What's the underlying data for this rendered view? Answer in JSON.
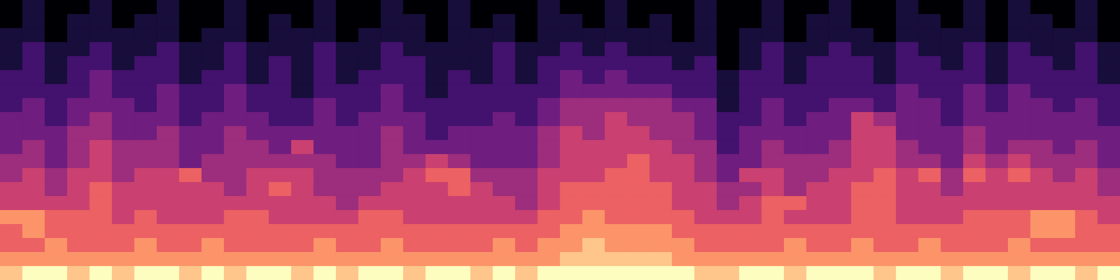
{
  "chart_data": {
    "type": "heatmap",
    "tick_labels": false,
    "grid": false,
    "zlim": [
      0,
      9
    ],
    "cells": [
      [
        0,
        1,
        0,
        0,
        1,
        0,
        0,
        1,
        0,
        0,
        1,
        0,
        0,
        0,
        1,
        0,
        0,
        1,
        0,
        0,
        1,
        0,
        0,
        0,
        1,
        0,
        0,
        1,
        0,
        0,
        0,
        1,
        0,
        0,
        1,
        0,
        0,
        1,
        0,
        0,
        1,
        0,
        0,
        1,
        0,
        1,
        0,
        0,
        1,
        0
      ],
      [
        0,
        1,
        0,
        1,
        1,
        0,
        1,
        1,
        0,
        0,
        1,
        0,
        1,
        0,
        1,
        0,
        0,
        1,
        1,
        0,
        1,
        0,
        1,
        0,
        1,
        1,
        0,
        1,
        0,
        1,
        0,
        1,
        0,
        0,
        1,
        0,
        1,
        1,
        0,
        0,
        1,
        1,
        0,
        1,
        0,
        1,
        1,
        0,
        1,
        0
      ],
      [
        1,
        1,
        0,
        1,
        1,
        1,
        1,
        1,
        0,
        1,
        1,
        0,
        1,
        1,
        1,
        0,
        1,
        1,
        1,
        0,
        1,
        1,
        1,
        0,
        1,
        1,
        1,
        1,
        1,
        1,
        0,
        1,
        0,
        1,
        1,
        0,
        1,
        1,
        1,
        0,
        1,
        1,
        1,
        1,
        0,
        1,
        1,
        1,
        1,
        0
      ],
      [
        1,
        2,
        1,
        1,
        2,
        1,
        1,
        2,
        1,
        1,
        2,
        1,
        1,
        1,
        2,
        1,
        1,
        2,
        1,
        1,
        1,
        1,
        2,
        1,
        1,
        2,
        1,
        2,
        1,
        1,
        1,
        1,
        0,
        1,
        2,
        1,
        1,
        2,
        1,
        1,
        2,
        1,
        1,
        2,
        1,
        2,
        1,
        1,
        2,
        1
      ],
      [
        1,
        2,
        1,
        2,
        2,
        1,
        2,
        2,
        1,
        1,
        2,
        1,
        2,
        1,
        2,
        1,
        1,
        2,
        2,
        1,
        1,
        1,
        2,
        1,
        2,
        2,
        2,
        2,
        2,
        2,
        1,
        2,
        0,
        1,
        2,
        1,
        2,
        2,
        2,
        1,
        2,
        2,
        1,
        2,
        1,
        2,
        2,
        1,
        2,
        1
      ],
      [
        2,
        2,
        1,
        2,
        3,
        2,
        2,
        2,
        1,
        2,
        2,
        1,
        2,
        1,
        2,
        1,
        2,
        2,
        2,
        1,
        2,
        1,
        2,
        1,
        2,
        3,
        2,
        3,
        2,
        2,
        2,
        2,
        1,
        2,
        2,
        1,
        2,
        2,
        2,
        1,
        2,
        2,
        2,
        2,
        1,
        2,
        2,
        2,
        2,
        1
      ],
      [
        2,
        2,
        2,
        2,
        3,
        2,
        2,
        3,
        2,
        2,
        3,
        2,
        2,
        1,
        2,
        2,
        2,
        3,
        2,
        1,
        2,
        2,
        2,
        2,
        2,
        3,
        3,
        3,
        3,
        3,
        2,
        2,
        1,
        2,
        2,
        2,
        2,
        2,
        2,
        2,
        3,
        2,
        2,
        3,
        2,
        3,
        2,
        2,
        2,
        2
      ],
      [
        2,
        3,
        2,
        3,
        3,
        3,
        2,
        3,
        2,
        2,
        3,
        2,
        2,
        2,
        3,
        2,
        2,
        3,
        2,
        2,
        2,
        2,
        2,
        2,
        3,
        4,
        4,
        4,
        4,
        4,
        3,
        3,
        1,
        2,
        3,
        2,
        2,
        3,
        3,
        2,
        3,
        3,
        2,
        3,
        2,
        3,
        3,
        2,
        3,
        2
      ],
      [
        3,
        3,
        2,
        3,
        4,
        3,
        3,
        3,
        2,
        3,
        3,
        3,
        2,
        2,
        3,
        2,
        3,
        3,
        3,
        2,
        2,
        2,
        3,
        2,
        3,
        4,
        4,
        5,
        4,
        4,
        4,
        3,
        2,
        2,
        3,
        2,
        3,
        3,
        5,
        4,
        3,
        3,
        2,
        3,
        3,
        3,
        3,
        3,
        3,
        2
      ],
      [
        3,
        3,
        3,
        4,
        4,
        3,
        3,
        4,
        3,
        3,
        4,
        3,
        3,
        3,
        3,
        3,
        3,
        4,
        3,
        2,
        3,
        3,
        3,
        3,
        4,
        5,
        4,
        5,
        5,
        4,
        4,
        3,
        2,
        3,
        3,
        3,
        3,
        3,
        5,
        5,
        3,
        3,
        3,
        4,
        3,
        3,
        3,
        3,
        3,
        3
      ],
      [
        3,
        4,
        3,
        4,
        5,
        4,
        4,
        4,
        3,
        3,
        4,
        4,
        3,
        5,
        3,
        3,
        3,
        4,
        3,
        3,
        3,
        3,
        3,
        3,
        4,
        5,
        5,
        5,
        5,
        5,
        4,
        4,
        2,
        3,
        4,
        3,
        3,
        4,
        5,
        5,
        4,
        3,
        3,
        4,
        3,
        4,
        4,
        3,
        4,
        3
      ],
      [
        4,
        4,
        3,
        4,
        5,
        4,
        4,
        4,
        3,
        4,
        4,
        4,
        4,
        4,
        4,
        3,
        3,
        4,
        4,
        5,
        4,
        3,
        3,
        3,
        4,
        5,
        5,
        5,
        6,
        5,
        5,
        4,
        3,
        3,
        4,
        4,
        4,
        4,
        5,
        5,
        4,
        4,
        3,
        5,
        4,
        5,
        4,
        4,
        4,
        3
      ],
      [
        4,
        5,
        4,
        5,
        5,
        4,
        5,
        5,
        6,
        4,
        4,
        5,
        5,
        5,
        4,
        4,
        4,
        4,
        5,
        6,
        6,
        4,
        4,
        4,
        5,
        5,
        5,
        6,
        6,
        5,
        5,
        4,
        3,
        5,
        5,
        4,
        4,
        5,
        5,
        6,
        5,
        6,
        4,
        6,
        5,
        6,
        5,
        4,
        5,
        4
      ],
      [
        5,
        5,
        4,
        5,
        6,
        5,
        5,
        5,
        5,
        5,
        4,
        5,
        6,
        5,
        4,
        4,
        4,
        5,
        5,
        5,
        6,
        5,
        4,
        4,
        5,
        6,
        6,
        6,
        6,
        6,
        5,
        5,
        4,
        4,
        5,
        4,
        5,
        5,
        6,
        6,
        5,
        5,
        4,
        5,
        5,
        5,
        5,
        5,
        5,
        4
      ],
      [
        5,
        5,
        5,
        5,
        6,
        5,
        5,
        5,
        5,
        5,
        5,
        5,
        5,
        5,
        5,
        4,
        5,
        5,
        5,
        5,
        5,
        5,
        5,
        4,
        5,
        6,
        6,
        6,
        6,
        6,
        5,
        5,
        4,
        5,
        6,
        6,
        5,
        5,
        6,
        6,
        5,
        5,
        5,
        5,
        5,
        5,
        5,
        5,
        5,
        5
      ],
      [
        7,
        7,
        6,
        6,
        6,
        5,
        6,
        5,
        5,
        5,
        6,
        6,
        5,
        5,
        5,
        5,
        6,
        6,
        5,
        5,
        5,
        5,
        5,
        5,
        6,
        6,
        7,
        6,
        6,
        6,
        6,
        5,
        5,
        5,
        6,
        5,
        5,
        5,
        6,
        6,
        5,
        5,
        5,
        6,
        6,
        6,
        7,
        7,
        6,
        5
      ],
      [
        6,
        7,
        6,
        6,
        6,
        6,
        6,
        6,
        6,
        6,
        6,
        6,
        6,
        6,
        6,
        6,
        6,
        6,
        6,
        6,
        6,
        6,
        6,
        6,
        6,
        7,
        7,
        7,
        7,
        7,
        6,
        6,
        6,
        6,
        6,
        6,
        6,
        6,
        6,
        6,
        6,
        6,
        6,
        6,
        6,
        6,
        7,
        7,
        6,
        6
      ],
      [
        6,
        6,
        7,
        6,
        6,
        6,
        7,
        6,
        6,
        7,
        6,
        6,
        6,
        6,
        7,
        6,
        6,
        7,
        6,
        6,
        6,
        6,
        7,
        6,
        7,
        7,
        8,
        7,
        7,
        7,
        7,
        6,
        6,
        6,
        6,
        7,
        6,
        6,
        7,
        6,
        6,
        7,
        6,
        6,
        6,
        7,
        6,
        6,
        6,
        6
      ],
      [
        7,
        7,
        7,
        7,
        7,
        7,
        7,
        7,
        7,
        7,
        7,
        7,
        7,
        7,
        7,
        7,
        7,
        7,
        7,
        7,
        7,
        7,
        7,
        7,
        7,
        8,
        8,
        8,
        8,
        8,
        7,
        7,
        7,
        7,
        7,
        7,
        7,
        7,
        7,
        7,
        7,
        7,
        7,
        7,
        7,
        7,
        7,
        7,
        7,
        7
      ],
      [
        8,
        9,
        9,
        8,
        9,
        8,
        9,
        9,
        8,
        9,
        8,
        9,
        9,
        8,
        9,
        8,
        9,
        9,
        8,
        9,
        9,
        8,
        9,
        8,
        9,
        9,
        9,
        9,
        9,
        9,
        9,
        8,
        8,
        9,
        9,
        8,
        9,
        9,
        9,
        8,
        9,
        9,
        8,
        9,
        9,
        8,
        9,
        9,
        8,
        9
      ]
    ]
  }
}
